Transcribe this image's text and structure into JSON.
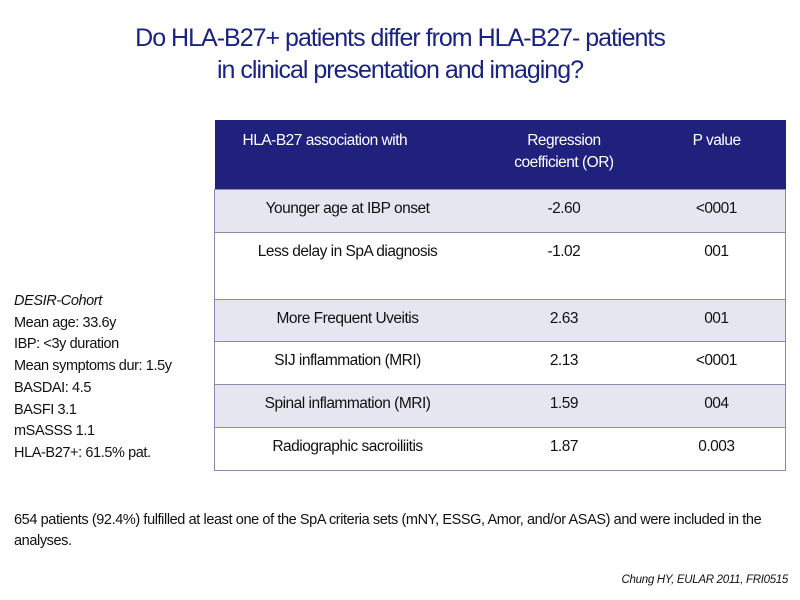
{
  "title": {
    "line1": "Do HLA-B27+ patients differ from HLA-B27- patients",
    "line2": "in clinical presentation and imaging?"
  },
  "table": {
    "headers": [
      "HLA-B27 association with",
      "Regression coefficient (OR)",
      "P value"
    ],
    "header_lines": {
      "col1": "HLA-B27 association with",
      "col2a": "Regression",
      "col2b": "coefficient (OR)",
      "col3": "P value"
    },
    "rows": [
      {
        "label": "Younger age at IBP onset",
        "coef": "-2.60",
        "p": "<0001"
      },
      {
        "label": "Less delay in SpA diagnosis",
        "coef": "-1.02",
        "p": "001"
      },
      {
        "label": "More Frequent Uveitis",
        "coef": "2.63",
        "p": "001"
      },
      {
        "label": "SIJ inflammation (MRI)",
        "coef": "2.13",
        "p": "<0001"
      },
      {
        "label": "Spinal inflammation (MRI)",
        "coef": "1.59",
        "p": "004"
      },
      {
        "label": "Radiographic sacroiliitis",
        "coef": "1.87",
        "p": "0.003"
      }
    ]
  },
  "cohort": {
    "heading": "DESIR-Cohort",
    "items": [
      "Mean age: 33.6y",
      "IBP: <3y duration",
      "Mean symptoms dur: 1.5y",
      "BASDAI: 4.5",
      "BASFI 3.1",
      "mSASSS 1.1",
      "HLA-B27+: 61.5% pat."
    ]
  },
  "footnote": "654 patients (92.4%) fulfilled at least one of the SpA criteria sets (mNY, ESSG, Amor, and/or ASAS) and were included in the analyses.",
  "source": "Chung HY, EULAR 2011, FRI0515"
}
